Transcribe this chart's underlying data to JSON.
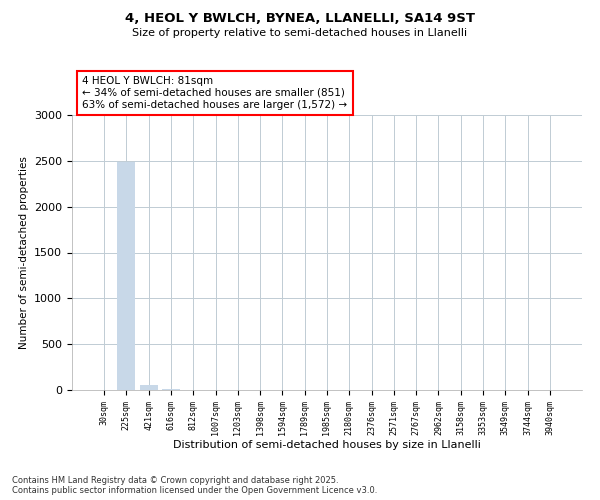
{
  "title_line1": "4, HEOL Y BWLCH, BYNEA, LLANELLI, SA14 9ST",
  "title_line2": "Size of property relative to semi-detached houses in Llanelli",
  "xlabel": "Distribution of semi-detached houses by size in Llanelli",
  "ylabel": "Number of semi-detached properties",
  "categories": [
    "30sqm",
    "225sqm",
    "421sqm",
    "616sqm",
    "812sqm",
    "1007sqm",
    "1203sqm",
    "1398sqm",
    "1594sqm",
    "1789sqm",
    "1985sqm",
    "2180sqm",
    "2376sqm",
    "2571sqm",
    "2767sqm",
    "2962sqm",
    "3158sqm",
    "3353sqm",
    "3549sqm",
    "3744sqm",
    "3940sqm"
  ],
  "values": [
    5,
    2490,
    55,
    15,
    5,
    3,
    2,
    2,
    1,
    1,
    1,
    1,
    1,
    1,
    1,
    1,
    1,
    1,
    1,
    1,
    1
  ],
  "bar_color": "#c8d8e8",
  "highlight_bar_index": 0,
  "highlight_color": "#cc2222",
  "annotation_text": "4 HEOL Y BWLCH: 81sqm\n← 34% of semi-detached houses are smaller (851)\n63% of semi-detached houses are larger (1,572) →",
  "ylim": [
    0,
    3000
  ],
  "yticks": [
    0,
    500,
    1000,
    1500,
    2000,
    2500,
    3000
  ],
  "footer_text": "Contains HM Land Registry data © Crown copyright and database right 2025.\nContains public sector information licensed under the Open Government Licence v3.0.",
  "background_color": "#ffffff",
  "grid_color": "#c0ccd4"
}
